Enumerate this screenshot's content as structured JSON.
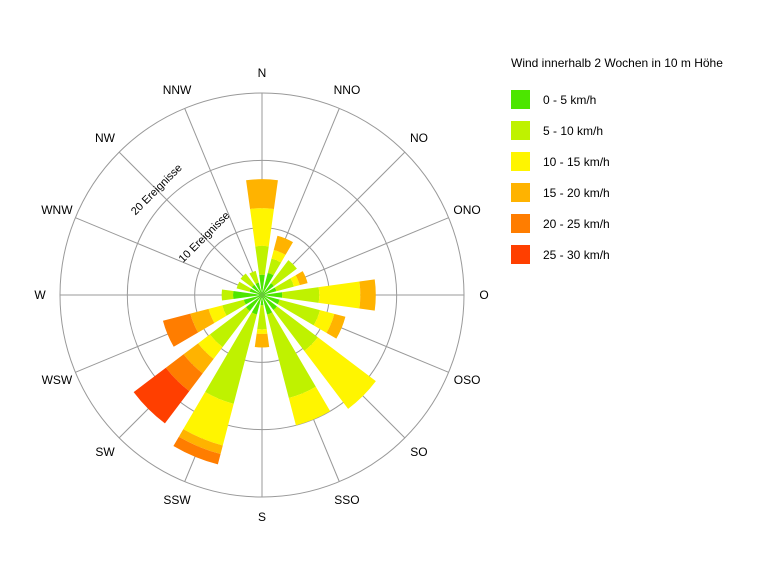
{
  "legend": {
    "title": "Wind innerhalb 2 Wochen in 10 m Höhe",
    "items": [
      {
        "label": "0 - 5 km/h",
        "color": "#4CE600"
      },
      {
        "label": "5 - 10 km/h",
        "color": "#BFF200"
      },
      {
        "label": "10 - 15 km/h",
        "color": "#FFF500"
      },
      {
        "label": "15 - 20 km/h",
        "color": "#FFB300"
      },
      {
        "label": "20 - 25 km/h",
        "color": "#FF7D00"
      },
      {
        "label": "25 - 30 km/h",
        "color": "#FF3F00"
      }
    ]
  },
  "chart_data": {
    "type": "windrose-stacked-polar-bar",
    "title": "Wind innerhalb 2 Wochen in 10 m Höhe",
    "units": {
      "angular": "Himmelsrichtung",
      "radial": "Ereignisse",
      "bins": "km/h"
    },
    "directions": [
      "N",
      "NNO",
      "NO",
      "ONO",
      "O",
      "OSO",
      "SO",
      "SSO",
      "S",
      "SSW",
      "SW",
      "WSW",
      "W",
      "WNW",
      "NW",
      "NNW"
    ],
    "direction_angles_deg": [
      0,
      22.5,
      45,
      67.5,
      90,
      112.5,
      135,
      157.5,
      180,
      202.5,
      225,
      247.5,
      270,
      292.5,
      315,
      337.5
    ],
    "speed_bins_kmh": [
      [
        0,
        5
      ],
      [
        5,
        10
      ],
      [
        10,
        15
      ],
      [
        15,
        20
      ],
      [
        20,
        25
      ],
      [
        25,
        30
      ]
    ],
    "bin_colors": [
      "#4CE600",
      "#BFF200",
      "#FFF500",
      "#FFB300",
      "#FF7D00",
      "#FF3F00"
    ],
    "values_events": {
      "N": [
        3.0,
        4.3,
        5.6,
        4.3,
        0,
        0
      ],
      "NNO": [
        3.4,
        2.2,
        1.3,
        2.2,
        0,
        0
      ],
      "NO": [
        2.2,
        4.3,
        0,
        0,
        0,
        0
      ],
      "ONO": [
        2.2,
        2.7,
        0.9,
        1.2,
        0,
        0
      ],
      "O": [
        3.0,
        5.5,
        6.1,
        2.3,
        0,
        0
      ],
      "OSO": [
        2.7,
        6.2,
        2.2,
        1.7,
        0,
        0
      ],
      "SO": [
        2.8,
        7.6,
        10.8,
        0,
        0,
        0
      ],
      "SSO": [
        3.0,
        12.8,
        4.2,
        0,
        0,
        0
      ],
      "S": [
        1.5,
        3.6,
        0.7,
        2.0,
        0,
        0
      ],
      "SSW": [
        3.0,
        13.7,
        6.4,
        1.3,
        1.6,
        0
      ],
      "SW": [
        3.0,
        6.7,
        2.2,
        2.7,
        3.3,
        6.0
      ],
      "WSW": [
        2.8,
        3.3,
        2.1,
        2.8,
        4.2,
        0
      ],
      "W": [
        4.3,
        1.7,
        0,
        0,
        0,
        0
      ],
      "WNW": [
        1.9,
        2.0,
        0,
        0,
        0,
        0
      ],
      "NW": [
        1.9,
        2.1,
        0,
        0,
        0,
        0
      ],
      "NNW": [
        1.9,
        1.8,
        0,
        0,
        0,
        0
      ]
    },
    "radial_axis": {
      "ticks": [
        10,
        20,
        30
      ],
      "labeled_ticks": [
        {
          "value": 10,
          "label": "10 Ereignisse"
        },
        {
          "value": 20,
          "label": "20 Ereignisse"
        }
      ],
      "max": 30,
      "label_angle_deg": 315,
      "grid": true
    },
    "grid_color": "#999999",
    "label_color": "#000000",
    "legend_position": "right"
  }
}
